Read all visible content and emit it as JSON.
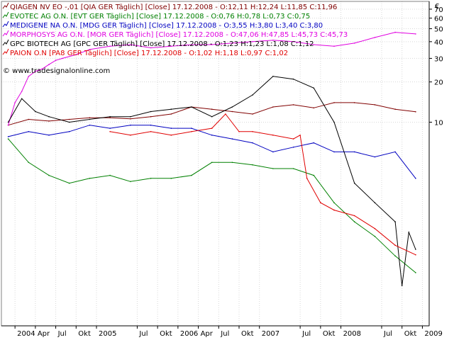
{
  "chart_data": {
    "type": "line",
    "currency_symbol": "€",
    "watermark": "© www.tradesignalonline.com",
    "y_scale": "log",
    "ylim": [
      0.3,
      80
    ],
    "y_ticks": [
      70,
      60,
      50,
      40,
      30,
      20,
      10
    ],
    "x_ticks": [
      "2004",
      "Apr",
      "Jul",
      "Okt",
      "2005",
      "Jul",
      "Okt",
      "2006",
      "Apr",
      "Jul",
      "Okt",
      "2007",
      "Jul",
      "Okt",
      "2008",
      "Jul",
      "Okt",
      "2009"
    ],
    "xlim": [
      "2003-11",
      "2009-02"
    ],
    "grid": true,
    "legend_position": "top-left",
    "series": [
      {
        "name": "QIAGEN NV EO -,01 [QIA GER Täglich] [Close] 17.12.2008",
        "legend": {
          "label": "QIAGEN NV      EO -,01 [QIA GER  Täglich] [Close] 17.12.2008 - ",
          "stats": "O:12,11 H:12,24 L:11,85 C:11,96"
        },
        "color": "#800000",
        "x": [
          "2003-12",
          "2004-03",
          "2004-06",
          "2004-09",
          "2004-12",
          "2005-03",
          "2005-06",
          "2005-09",
          "2005-12",
          "2006-03",
          "2006-06",
          "2006-09",
          "2006-12",
          "2007-03",
          "2007-06",
          "2007-09",
          "2007-12",
          "2008-03",
          "2008-06",
          "2008-09",
          "2008-12"
        ],
        "values": [
          9.5,
          10.5,
          10.2,
          10.5,
          10.8,
          10.8,
          10.6,
          11.0,
          11.5,
          13,
          12.5,
          12.0,
          11.5,
          13,
          13.5,
          12.8,
          14,
          14,
          13.5,
          12.5,
          11.96
        ]
      },
      {
        "name": "EVOTEC AG O.N. [EVT GER Täglich] [Close] 17.12.2008",
        "legend": {
          "label": "EVOTEC AG O.N. [EVT GER  Täglich] [Close] 17.12.2008 - ",
          "stats": "O:0,76 H:0,78 L:0,73 C:0,75"
        },
        "color": "#008000",
        "x": [
          "2003-12",
          "2004-03",
          "2004-06",
          "2004-09",
          "2004-12",
          "2005-03",
          "2005-06",
          "2005-09",
          "2005-12",
          "2006-03",
          "2006-06",
          "2006-09",
          "2006-12",
          "2007-03",
          "2007-06",
          "2007-09",
          "2007-12",
          "2008-03",
          "2008-06",
          "2008-09",
          "2008-12"
        ],
        "values": [
          7.5,
          5.0,
          4.0,
          3.5,
          3.8,
          4.0,
          3.6,
          3.8,
          3.8,
          4.0,
          5.0,
          5.0,
          4.8,
          4.5,
          4.5,
          4.0,
          2.5,
          1.8,
          1.4,
          1.0,
          0.75
        ]
      },
      {
        "name": "MEDIGENE NA O.N. [MDG GER Täglich] [Close] 17.12.2008",
        "legend": {
          "label": "MEDIGENE NA O.N. [MDG GER  Täglich] [Close] 17.12.2008 - ",
          "stats": "O:3,55 H:3,80 L:3,40 C:3,80"
        },
        "color": "#0000c0",
        "x": [
          "2003-12",
          "2004-03",
          "2004-06",
          "2004-09",
          "2004-12",
          "2005-03",
          "2005-06",
          "2005-09",
          "2005-12",
          "2006-03",
          "2006-06",
          "2006-09",
          "2006-12",
          "2007-03",
          "2007-06",
          "2007-09",
          "2007-12",
          "2008-03",
          "2008-06",
          "2008-09",
          "2008-12"
        ],
        "values": [
          7.8,
          8.5,
          8.0,
          8.5,
          9.5,
          9.0,
          9.5,
          9.5,
          9.0,
          9.0,
          8.0,
          7.5,
          7.0,
          6.0,
          6.5,
          7.0,
          6.0,
          6.0,
          5.5,
          6.0,
          3.8
        ]
      },
      {
        "name": "MORPHOSYS AG O.N. [MOR GER Täglich] [Close] 17.12.2008",
        "legend": {
          "label": "MORPHOSYS AG O.N. [MOR GER  Täglich] [Close] 17.12.2008 - ",
          "stats": "O:47,06 H:47,85 L:45,73 C:45,73"
        },
        "color": "#e000e0",
        "x": [
          "2003-12",
          "2004-01",
          "2004-02",
          "2004-03",
          "2004-04",
          "2004-05",
          "2004-06",
          "2004-07",
          "2004-08",
          "2004-10",
          "2004-12",
          "2005-03",
          "2005-06",
          "2005-09",
          "2005-12",
          "2006-03",
          "2006-06",
          "2006-09",
          "2006-12",
          "2007-03",
          "2007-06",
          "2007-09",
          "2007-12",
          "2008-03",
          "2008-06",
          "2008-09",
          "2008-12"
        ],
        "values": [
          9.5,
          14,
          17,
          22,
          24,
          25,
          27,
          29,
          30,
          32,
          35,
          37,
          38,
          36,
          37,
          38,
          38,
          39,
          40,
          41,
          40,
          38,
          37,
          39,
          43,
          47,
          45.73
        ]
      },
      {
        "name": "GPC BIOTECH AG [GPC GER Täglich] [Close] 17.12.2008",
        "legend": {
          "label": "GPC BIOTECH AG [GPC GER  Täglich] [Close] 17.12.2008 - ",
          "stats": "O:1,23 H:1,23 L:1,08 C:1,12"
        },
        "color": "#000000",
        "x": [
          "2003-12",
          "2004-02",
          "2004-04",
          "2004-06",
          "2004-09",
          "2004-12",
          "2005-03",
          "2005-06",
          "2005-09",
          "2005-12",
          "2006-03",
          "2006-06",
          "2006-09",
          "2006-12",
          "2007-03",
          "2007-06",
          "2007-09",
          "2007-12",
          "2008-03",
          "2008-06",
          "2008-09",
          "2008-10",
          "2008-11",
          "2008-12"
        ],
        "values": [
          10,
          15,
          12,
          11,
          10,
          10.5,
          11,
          11,
          12,
          12.5,
          13,
          11,
          13,
          16,
          22,
          21,
          18,
          10,
          3.5,
          2.5,
          1.8,
          0.6,
          1.5,
          1.12
        ]
      },
      {
        "name": "PAION O.N [PA8 GER Täglich] [Close] 17.12.2008",
        "legend": {
          "label": "PAION O.N [PA8 GER  Täglich] [Close] 17.12.2008 - ",
          "stats": "O:1,02 H:1,18 L:0,97 C:1,02"
        },
        "color": "#e00000",
        "x": [
          "2005-03",
          "2005-06",
          "2005-09",
          "2005-12",
          "2006-03",
          "2006-06",
          "2006-08",
          "2006-10",
          "2006-12",
          "2007-03",
          "2007-06",
          "2007-07",
          "2007-08",
          "2007-10",
          "2007-12",
          "2008-03",
          "2008-06",
          "2008-09",
          "2008-12"
        ],
        "values": [
          8.5,
          8.0,
          8.5,
          8.0,
          8.5,
          9.0,
          11.5,
          8.5,
          8.5,
          8.0,
          7.5,
          8.0,
          3.8,
          2.5,
          2.2,
          2.0,
          1.6,
          1.2,
          1.02
        ]
      }
    ]
  }
}
